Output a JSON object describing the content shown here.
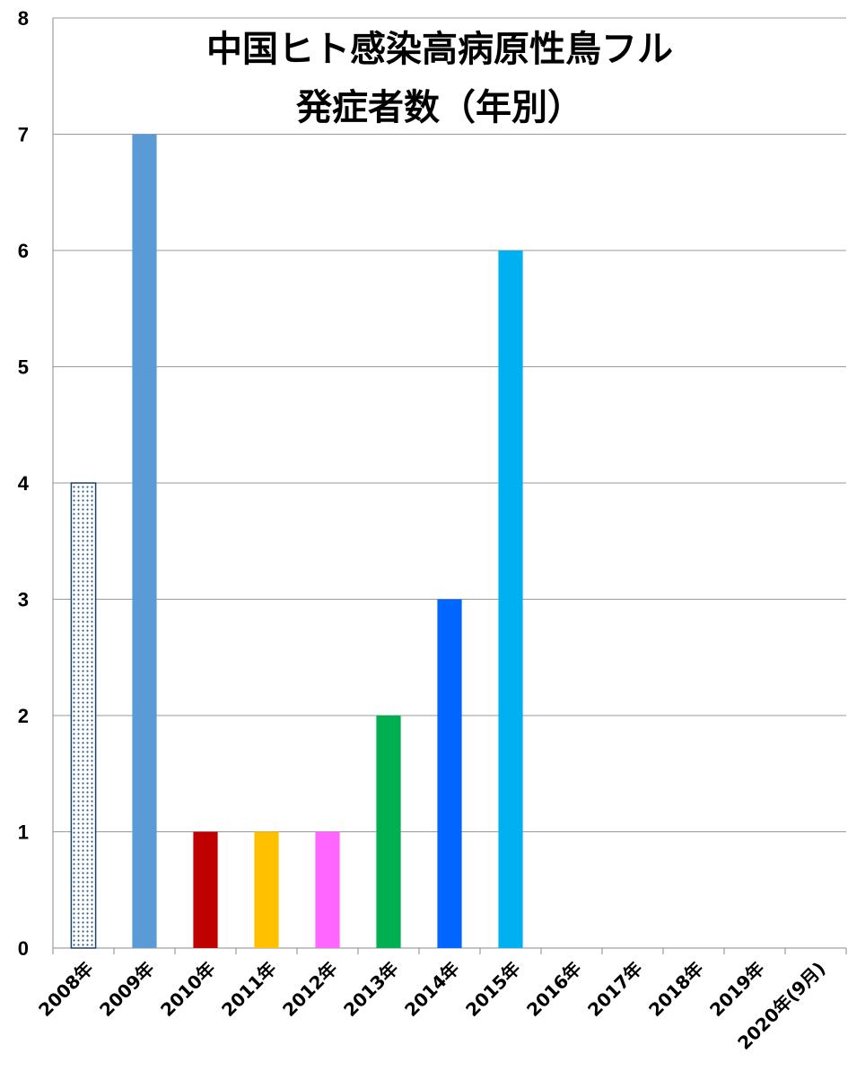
{
  "chart_data": {
    "type": "bar",
    "title_lines": [
      "中国ヒト感染高病原性鳥フル",
      "発症者数（年別）"
    ],
    "categories": [
      "2008年",
      "2009年",
      "2010年",
      "2011年",
      "2012年",
      "2013年",
      "2014年",
      "2015年",
      "2016年",
      "2017年",
      "2018年",
      "2019年",
      "2020年(9月)"
    ],
    "values": [
      4,
      7,
      1,
      1,
      1,
      2,
      3,
      6,
      0,
      0,
      0,
      0,
      0
    ],
    "colors": [
      "pattern-dots",
      "#5B9BD5",
      "#C00000",
      "#FFC000",
      "#FF66FF",
      "#00B050",
      "#0066FF",
      "#00B0F0",
      "#cccccc",
      "#cccccc",
      "#cccccc",
      "#cccccc",
      "#cccccc"
    ],
    "ylim": [
      0,
      8
    ],
    "yticks": [
      0,
      1,
      2,
      3,
      4,
      5,
      6,
      7,
      8
    ],
    "grid": true
  }
}
